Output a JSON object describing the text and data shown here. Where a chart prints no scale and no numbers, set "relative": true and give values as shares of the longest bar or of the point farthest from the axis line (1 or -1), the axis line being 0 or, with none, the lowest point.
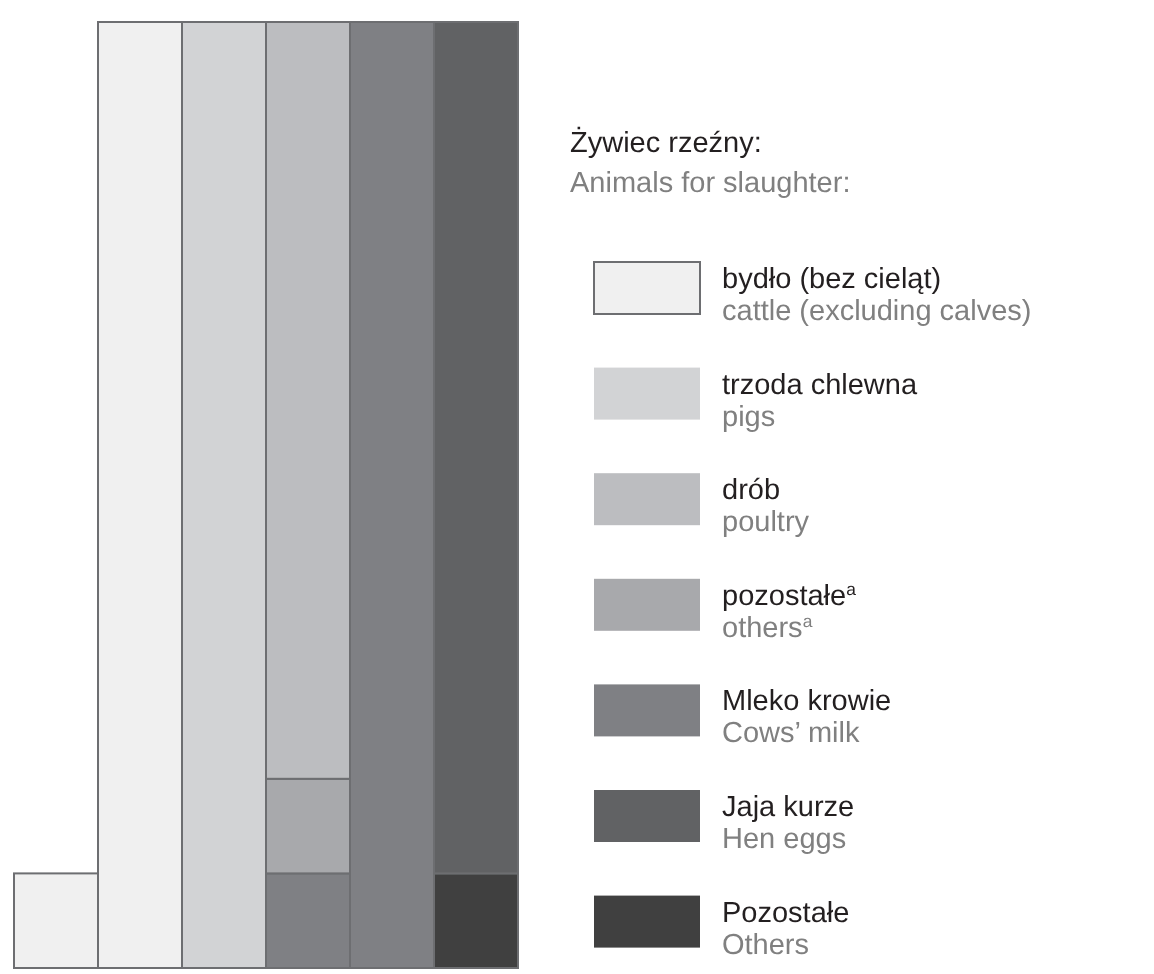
{
  "chart_data": {
    "type": "bar",
    "stacked": true,
    "relative": true,
    "legend": "right",
    "legend_title": "Żywiec rzeźny:\nAnimals for slaughter:",
    "categories": [
      null,
      null,
      null,
      null,
      null,
      null
    ],
    "series": [
      {
        "name": "Pozostałe\nOthers",
        "color": "#404040",
        "values": [
          null,
          null,
          null,
          null,
          null,
          0.1
        ]
      },
      {
        "name": "Jaja kurze\nHen eggs",
        "color": "#616264",
        "values": [
          null,
          null,
          null,
          null,
          null,
          0.9
        ]
      },
      {
        "name": "Mleko krowie\nCows’ milk",
        "color": "#7f8084",
        "values": [
          null,
          null,
          null,
          0.1,
          1.0,
          null
        ]
      },
      {
        "name": "pozostałe$^{a}$\nothers$^{a}$",
        "color": "#a8a9ac",
        "values": [
          null,
          null,
          null,
          0.1,
          null,
          null
        ]
      },
      {
        "name": "drób\npoultry",
        "color": "#bcbdc0",
        "values": [
          null,
          null,
          null,
          0.8,
          null,
          null
        ]
      },
      {
        "name": "trzoda chlewna\npigs",
        "color": "#d2d3d5",
        "values": [
          null,
          null,
          1.0,
          null,
          null,
          null
        ]
      },
      {
        "name": "bydło (bez cieląt)\ncattle (excluding calves)",
        "color": "#f0f0f0",
        "values": [
          0.1,
          1.0,
          null,
          null,
          null,
          null
        ]
      }
    ]
  }
}
